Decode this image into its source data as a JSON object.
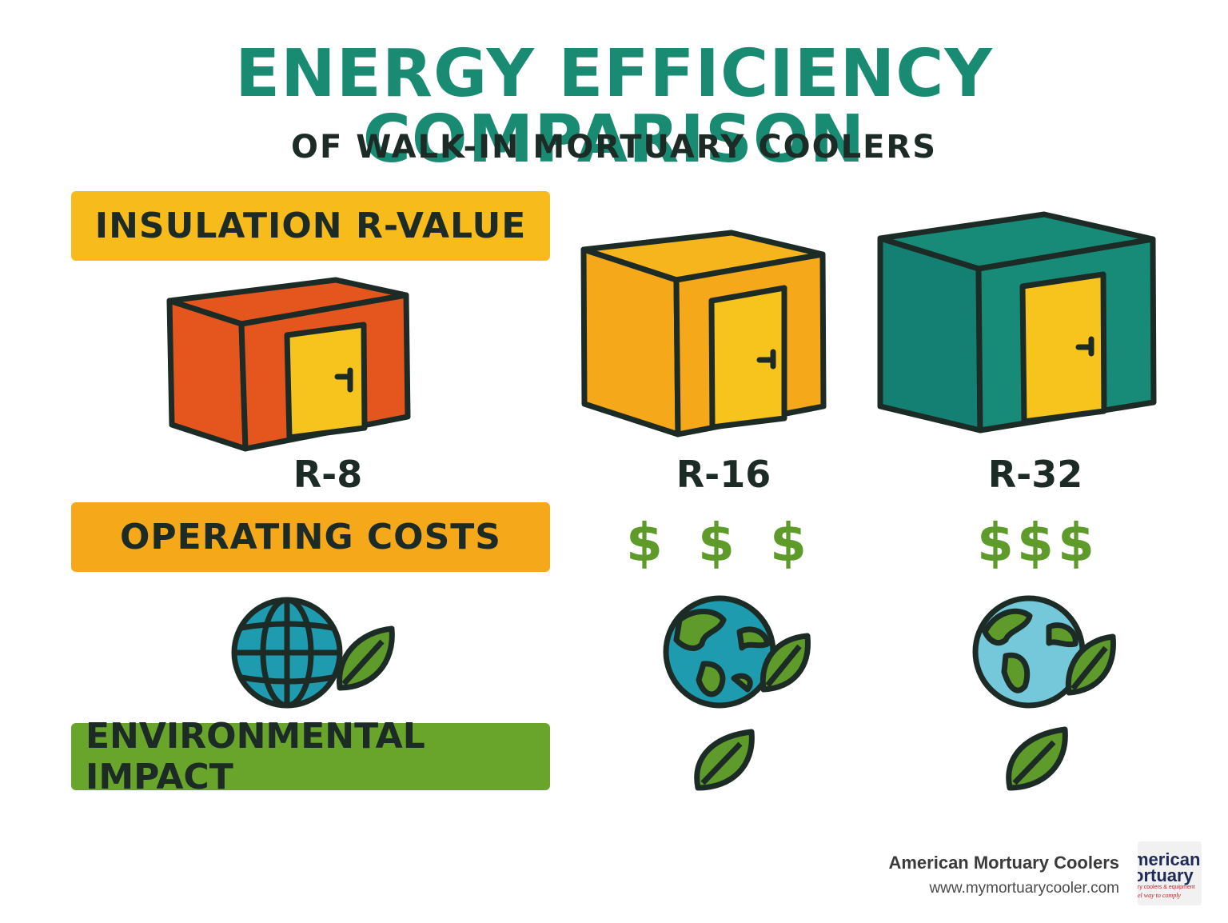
{
  "title": "ENERGY EFFICIENCY COMPARISON",
  "subtitle": "OF WALK-IN MORTUARY COOLERS",
  "rows": {
    "insulation": "INSULATION R-VALUE",
    "operating": "OPERATING COSTS",
    "environmental": "ENVIRONMENTAL IMPACT"
  },
  "coolers": [
    {
      "r_value": "R-8",
      "color": "#e5561e"
    },
    {
      "r_value": "R-16",
      "color": "#f6a81b",
      "dollars": [
        "$",
        "$",
        "$"
      ]
    },
    {
      "r_value": "R-32",
      "color": "#178a78",
      "dollars": [
        "$",
        "$",
        "$"
      ]
    }
  ],
  "colors": {
    "title": "#1a8b73",
    "dark": "#1d2b26",
    "door": "#f7c31d",
    "leaf": "#5e9b2b",
    "globe_blue": "#1f9bb0"
  },
  "icons": [
    "cooler-icon",
    "door-icon",
    "dollar-icon",
    "globe-icon",
    "leaf-icon"
  ],
  "brand": {
    "name": "American Mortuary Coolers",
    "url": "www.mymortuarycooler.com",
    "logo_line1": "merican",
    "logo_line2": "ortuary",
    "logo_line3": "ry coolers & equipment",
    "logo_line4": "el way to comply"
  }
}
